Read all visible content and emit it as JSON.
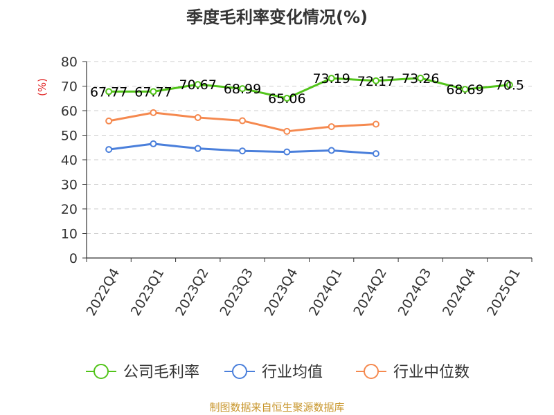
{
  "chart_data": {
    "type": "line",
    "title": "季度毛利率变化情况(%)",
    "ylabel": "(%)",
    "xlabel": "",
    "ylim": [
      0,
      80
    ],
    "yticks": [
      0,
      10,
      20,
      30,
      40,
      50,
      60,
      70,
      80
    ],
    "categories": [
      "2022Q4",
      "2023Q1",
      "2023Q2",
      "2023Q3",
      "2023Q4",
      "2024Q1",
      "2024Q2",
      "2024Q3",
      "2024Q4",
      "2025Q1"
    ],
    "grid": true,
    "legend_position": "bottom",
    "series": [
      {
        "name": "公司毛利率",
        "color": "#52c41a",
        "values": [
          67.77,
          67.77,
          70.67,
          68.99,
          65.06,
          73.19,
          72.17,
          73.26,
          68.69,
          70.5
        ],
        "labels": [
          "67.77",
          "67.77",
          "70.67",
          "68.99",
          "65.06",
          "73.19",
          "72.17",
          "73.26",
          "68.69",
          "70.5"
        ]
      },
      {
        "name": "行业均值",
        "color": "#4a7fdb",
        "values": [
          44.2,
          46.5,
          44.6,
          43.6,
          43.2,
          43.8,
          42.5,
          null,
          null,
          null
        ]
      },
      {
        "name": "行业中位数",
        "color": "#f5894f",
        "values": [
          55.8,
          59.2,
          57.2,
          55.9,
          51.6,
          53.5,
          54.5,
          null,
          null,
          null
        ]
      }
    ]
  },
  "footer": {
    "source": "制图数据来自恒生聚源数据库"
  }
}
